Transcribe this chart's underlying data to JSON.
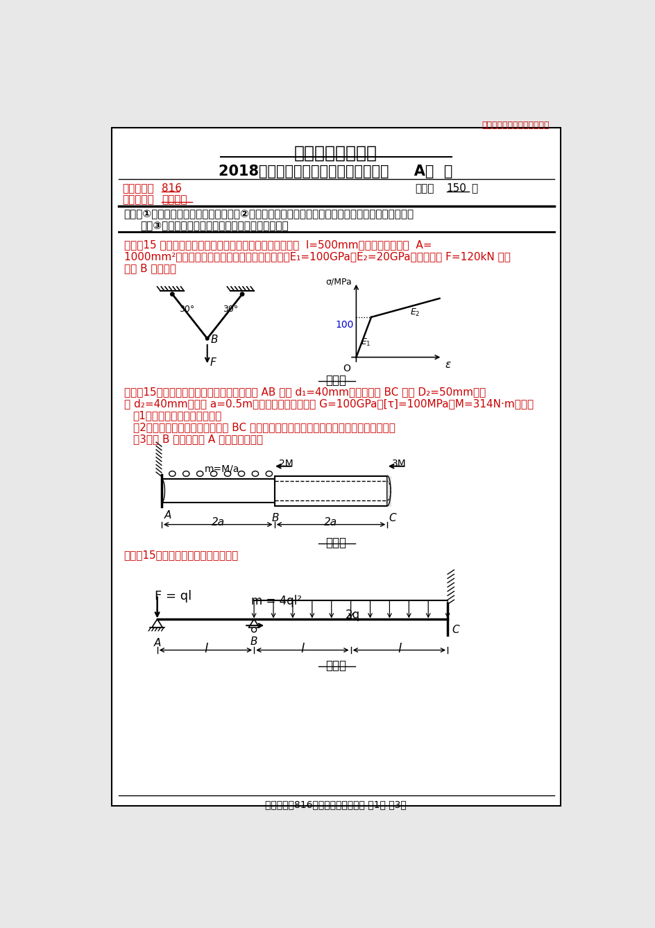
{
  "watermark": "梦想不会辜负每一个努力的人",
  "university": "南京航空航天大学",
  "exam_title": "2018年硕士研究生入学考试初试试题（     A卷  ）",
  "subject_code_label": "科目代码：",
  "subject_code": "816",
  "subject_name_label": "科目名称：",
  "subject_name": "材料力学",
  "full_score_label": "满分：",
  "full_score": "150",
  "full_score_unit": "分",
  "notice_bold1": "注意：①认真阅读答题纸上的注意事项；②所有答案必须写在答题纸上，写在本试题纸或草稿纸上均无",
  "notice_bold2": "效；③本试题纸须随答题纸一起装入试题袋中交回！",
  "q1_line1": "一、（15 分）如图所示简单铰接杆系结构。两杆的长度均为  l=500mm，横截面面积均为  A=",
  "q1_line2": "1000mm²。材料的应力应变关系如图所示，其中，E₁=100GPa，E₂=20GPa。试计算当 F=120kN 时，",
  "q1_line3": "节点 B 的位移。",
  "q1_label": "第一题",
  "q2_text1": "二、（15分）图示阶梯形受扭圆轴，实心圆轴 AB 直径 d₁=40mm，空心圆轴 BC 外径 D₂=50mm，内",
  "q2_text2": "径 d₂=40mm。尺寸 a=0.5m，材料的剪切弹性模量 G=100GPa，[τ]=100MPa。M=314N·m。试：",
  "q2_item1": "（1）根据强度条件进行校核；",
  "q2_item2": "（2）从右往左看，画出空心截面 BC 段上任意横截面上的应力分布图，并标上应力数值；",
  "q2_item3": "（3）求 B 截面相对于 A 截面的扭转角。",
  "q2_label": "第二题",
  "q3_text": "三、（15分）作梁的剪力图与弯矩图。",
  "q3_label": "第三题",
  "footer": "科目代码：816科目名称：材料力学 第1页 共3页",
  "bg_color": "#e8e8e8",
  "page_color": "#ffffff",
  "text_color": "#000000",
  "red_color": "#cc0000",
  "blue_color": "#0000cc"
}
